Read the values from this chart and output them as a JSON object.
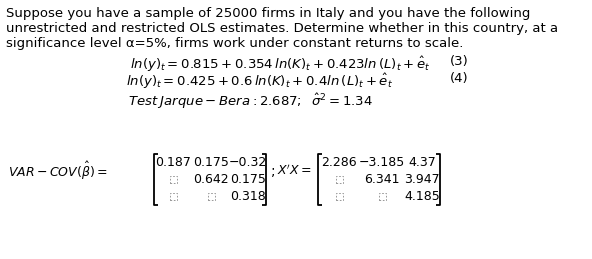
{
  "bg_color": "#ffffff",
  "text_color": "#000000",
  "para_line1": "Suppose you have a sample of 25000 firms in Italy and you have the following",
  "para_line2": "unrestricted and restricted OLS estimates. Determine whether in this country, at a",
  "para_line3": "significance level α=5%, firms work under constant returns to scale.",
  "fontsize_para": 9.5,
  "fontsize_eq": 9.5,
  "fontsize_mat": 9.0,
  "var_matrix_r1": [
    "0.187",
    "0.175",
    "−0.32"
  ],
  "var_matrix_r2": [
    "",
    "0.642",
    "0.175"
  ],
  "var_matrix_r3": [
    "",
    "",
    "0.318"
  ],
  "xtx_matrix_r1": [
    "2.286",
    "−3.185",
    "4.37"
  ],
  "xtx_matrix_r2": [
    "",
    "6.341",
    "3.947"
  ],
  "xtx_matrix_r3": [
    "",
    "",
    "4.185"
  ]
}
